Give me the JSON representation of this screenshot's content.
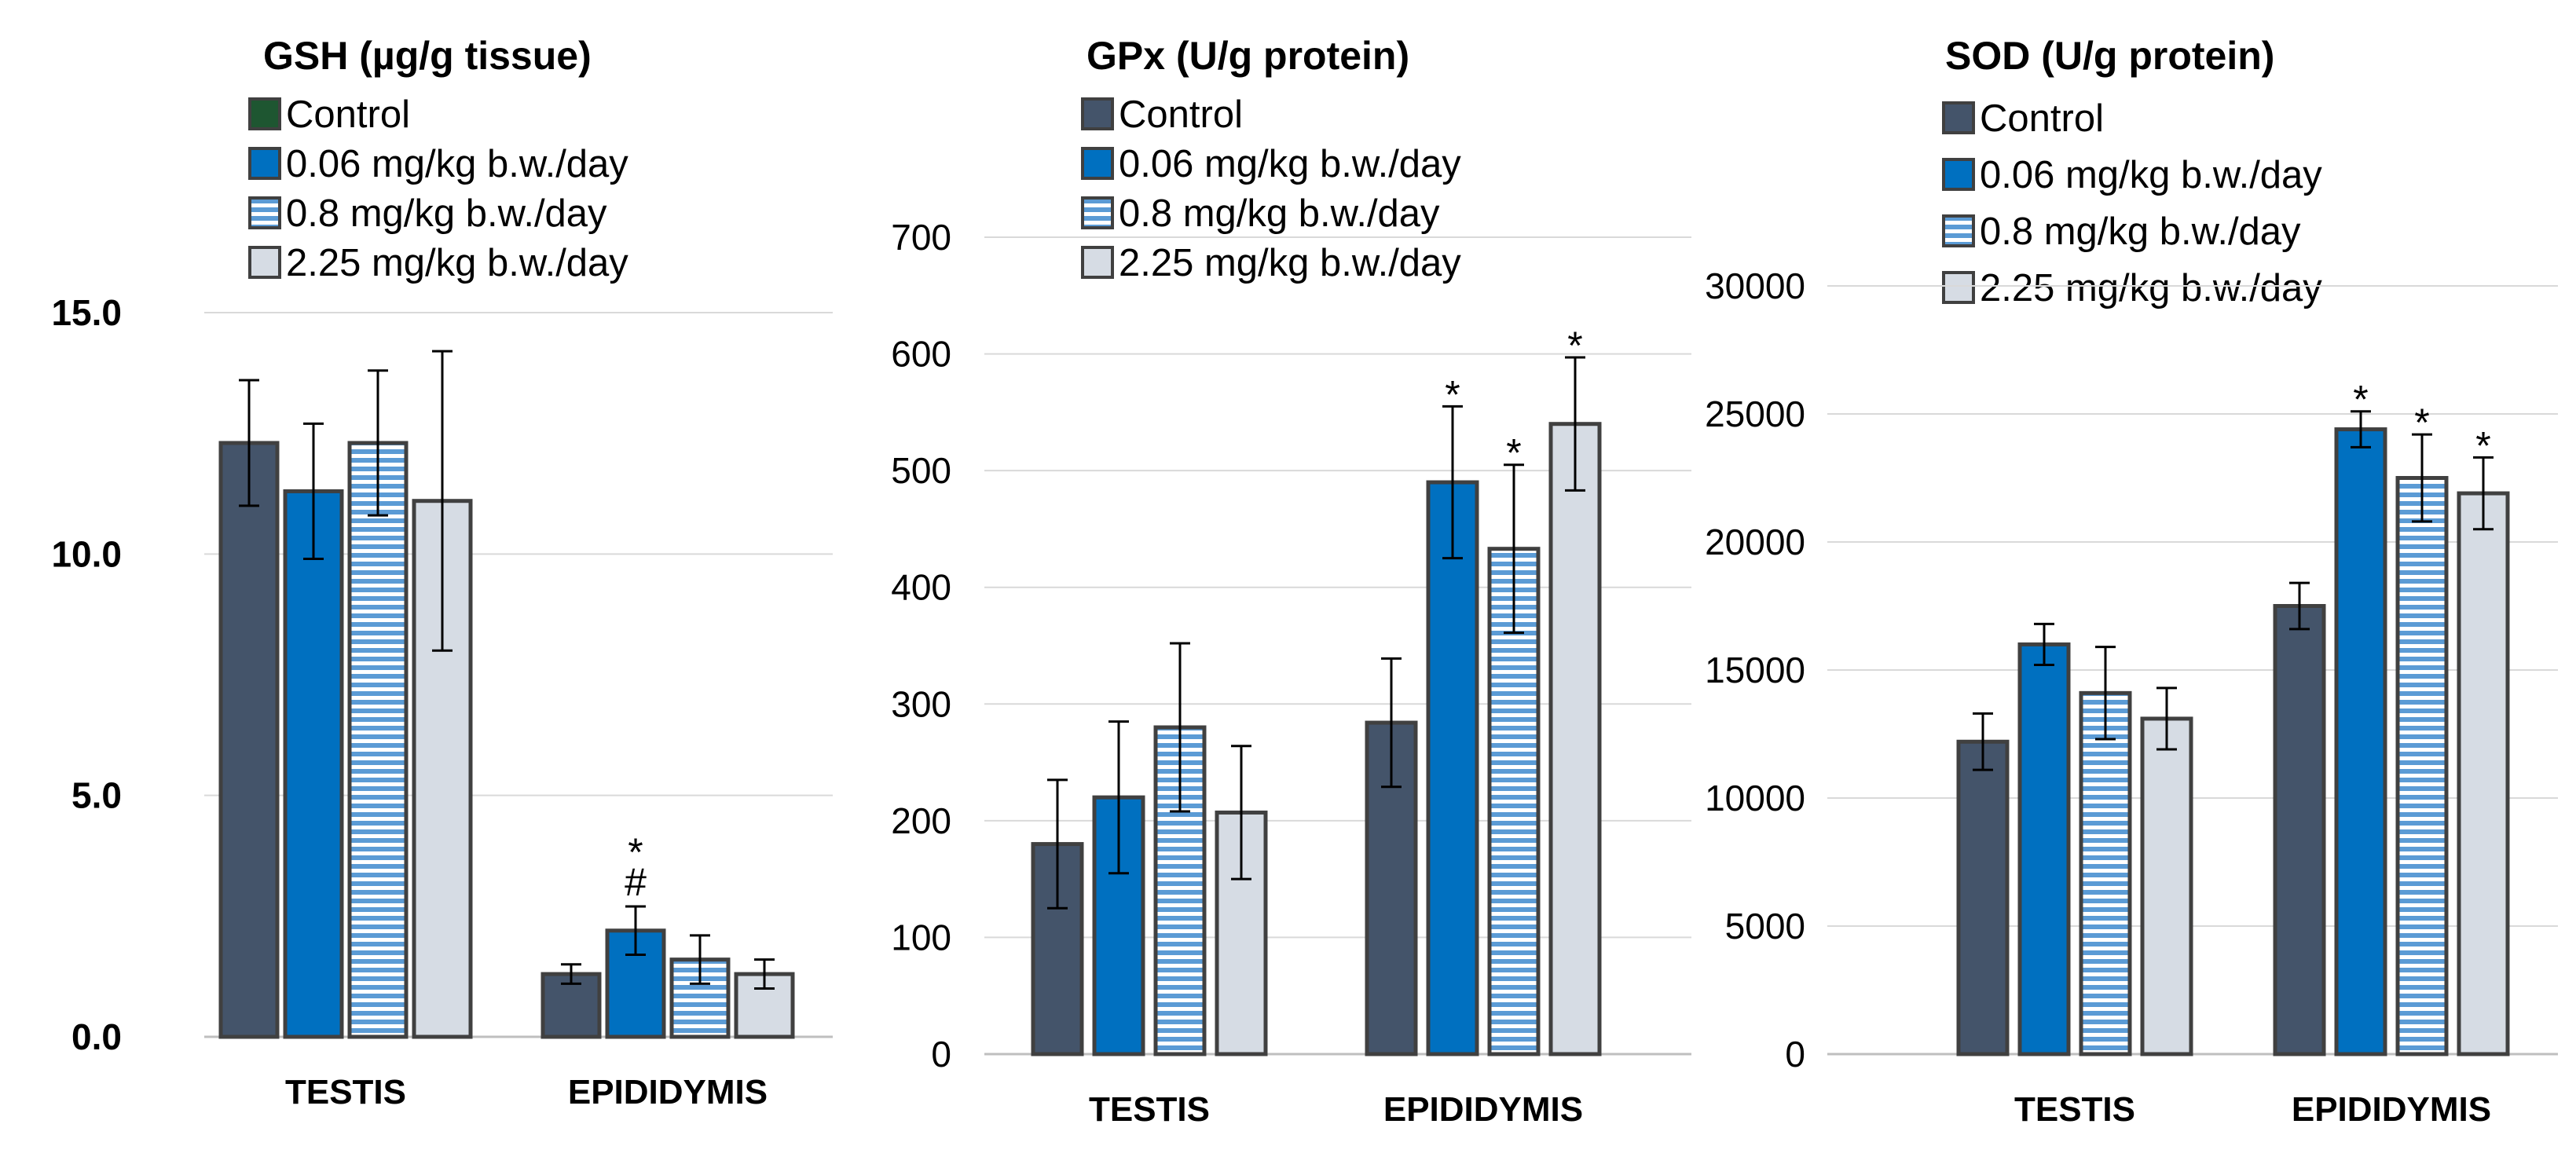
{
  "colors": {
    "control": "#44546a",
    "control_legend_gsh": "#1e5631",
    "dose_006": "#0070c0",
    "dose_08_stripe": "#5b9bd5",
    "dose_225": "#d6dce4",
    "bar_outline": "#404040",
    "grid": "#d9d9d9"
  },
  "chart_data": [
    {
      "type": "bar",
      "title": "GSH (µg/g tissue)",
      "xlabel": "",
      "ylabel": "",
      "ylim": [
        0,
        15
      ],
      "yticks": [
        "0.0",
        "5.0",
        "10.0",
        "15.0"
      ],
      "ytick_values": [
        0,
        5,
        10,
        15
      ],
      "yticks_bold": true,
      "legend_position": "top",
      "categories": [
        "TESTIS",
        "EPIDIDYMIS"
      ],
      "series": [
        {
          "name": "Control",
          "key": "control",
          "values": [
            12.3,
            1.3
          ],
          "errors": [
            1.3,
            0.2
          ],
          "sig": [
            "",
            ""
          ]
        },
        {
          "name": "0.06 mg/kg b.w./day",
          "key": "dose_006",
          "values": [
            11.3,
            2.2
          ],
          "errors": [
            1.4,
            0.5
          ],
          "sig": [
            "",
            "*\n#"
          ]
        },
        {
          "name": "0.8 mg/kg b.w./day",
          "key": "dose_08",
          "values": [
            12.3,
            1.6
          ],
          "errors": [
            1.5,
            0.5
          ],
          "sig": [
            "",
            ""
          ]
        },
        {
          "name": "2.25 mg/kg b.w./day",
          "key": "dose_225",
          "values": [
            11.1,
            1.3
          ],
          "errors": [
            3.1,
            0.3
          ],
          "sig": [
            "",
            ""
          ]
        }
      ]
    },
    {
      "type": "bar",
      "title": "GPx (U/g protein)",
      "xlabel": "",
      "ylabel": "",
      "ylim": [
        0,
        700
      ],
      "yticks": [
        "0",
        "100",
        "200",
        "300",
        "400",
        "500",
        "600",
        "700"
      ],
      "ytick_values": [
        0,
        100,
        200,
        300,
        400,
        500,
        600,
        700
      ],
      "yticks_bold": false,
      "legend_position": "top",
      "categories": [
        "TESTIS",
        "EPIDIDYMIS"
      ],
      "series": [
        {
          "name": "Control",
          "key": "control",
          "values": [
            180,
            284
          ],
          "errors": [
            55,
            55
          ],
          "sig": [
            "",
            ""
          ]
        },
        {
          "name": "0.06 mg/kg b.w./day",
          "key": "dose_006",
          "values": [
            220,
            490
          ],
          "errors": [
            65,
            65
          ],
          "sig": [
            "",
            "*"
          ]
        },
        {
          "name": "0.8 mg/kg b.w./day",
          "key": "dose_08",
          "values": [
            280,
            433
          ],
          "errors": [
            72,
            72
          ],
          "sig": [
            "",
            "*"
          ]
        },
        {
          "name": "2.25 mg/kg b.w./day",
          "key": "dose_225",
          "values": [
            207,
            540
          ],
          "errors": [
            57,
            57
          ],
          "sig": [
            "",
            "*"
          ]
        }
      ]
    },
    {
      "type": "bar",
      "title": "SOD (U/g protein)",
      "xlabel": "",
      "ylabel": "",
      "ylim": [
        0,
        30000
      ],
      "yticks": [
        "0",
        "5000",
        "10000",
        "15000",
        "20000",
        "25000",
        "30000"
      ],
      "ytick_values": [
        0,
        5000,
        10000,
        15000,
        20000,
        25000,
        30000
      ],
      "yticks_bold": false,
      "legend_position": "top",
      "categories": [
        "TESTIS",
        "EPIDIDYMIS"
      ],
      "series": [
        {
          "name": "Control",
          "key": "control",
          "values": [
            12200,
            17500
          ],
          "errors": [
            1100,
            900
          ],
          "sig": [
            "",
            ""
          ]
        },
        {
          "name": "0.06 mg/kg b.w./day",
          "key": "dose_006",
          "values": [
            16000,
            24400
          ],
          "errors": [
            800,
            700
          ],
          "sig": [
            "",
            "*"
          ]
        },
        {
          "name": "0.8 mg/kg b.w./day",
          "key": "dose_08",
          "values": [
            14100,
            22500
          ],
          "errors": [
            1800,
            1700
          ],
          "sig": [
            "",
            "*"
          ]
        },
        {
          "name": "2.25 mg/kg b.w./day",
          "key": "dose_225",
          "values": [
            13100,
            21900
          ],
          "errors": [
            1200,
            1400
          ],
          "sig": [
            "",
            "*"
          ]
        }
      ]
    }
  ]
}
